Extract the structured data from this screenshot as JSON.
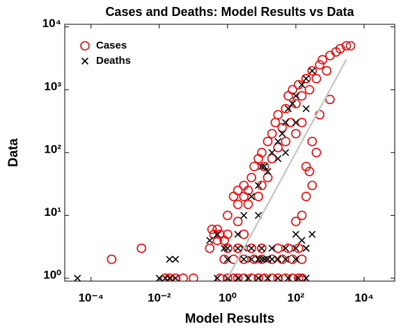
{
  "chart_data": {
    "type": "scatter",
    "title": "Cases and Deaths: Model Results vs Data",
    "x_label": "Model Results",
    "y_label": "Data",
    "log_x": true,
    "log_y": true,
    "grid": false,
    "legend": "upper left",
    "xlim": [
      1.7e-05,
      79000
    ],
    "ylim": [
      0.9,
      11000
    ],
    "xticks": [
      {
        "value": 0.0001,
        "label": "10⁻⁴"
      },
      {
        "value": 0.01,
        "label": "10⁻²"
      },
      {
        "value": 1,
        "label": "10⁰"
      },
      {
        "value": 100,
        "label": "10²"
      },
      {
        "value": 10000,
        "label": "10⁴"
      }
    ],
    "yticks": [
      {
        "value": 1,
        "label": "10⁰"
      },
      {
        "value": 10,
        "label": "10¹"
      },
      {
        "value": 100,
        "label": "10²"
      },
      {
        "value": 1000,
        "label": "10³"
      },
      {
        "value": 10000,
        "label": "10⁴"
      }
    ],
    "reference_line": {
      "x": [
        1,
        3000
      ],
      "y": [
        1,
        3000
      ],
      "color": "#c8c8c8"
    },
    "series": [
      {
        "name": "Cases",
        "color": "#ff0000",
        "marker": "o",
        "x": [
          0.0004,
          0.003,
          0.015,
          0.02,
          0.03,
          0.05,
          0.1,
          0.3,
          0.35,
          0.5,
          0.6,
          0.8,
          0.5,
          0.4,
          0.6,
          1,
          1.5,
          2,
          3,
          5,
          8,
          12,
          20,
          30,
          50,
          80,
          120,
          150,
          0.8,
          1.5,
          3,
          6,
          10,
          20,
          40,
          80,
          150,
          1,
          2,
          5,
          10,
          30,
          60,
          120,
          1,
          1.5,
          2,
          2,
          3,
          3,
          4,
          5,
          6,
          8,
          8,
          10,
          10,
          12,
          15,
          15,
          20,
          20,
          25,
          30,
          30,
          40,
          50,
          50,
          60,
          70,
          80,
          100,
          100,
          120,
          150,
          150,
          200,
          200,
          250,
          300,
          300,
          400,
          500,
          500,
          600,
          800,
          1000,
          1000,
          1500,
          2000,
          3000,
          4000,
          200,
          300,
          150,
          100,
          400,
          250,
          3,
          2,
          1,
          4
        ],
        "values": [
          2,
          3,
          1,
          1,
          1,
          1,
          1,
          3,
          6,
          6,
          5,
          4,
          4,
          5,
          1,
          1,
          1,
          1,
          1,
          1,
          1,
          1,
          1,
          1,
          1,
          1,
          1,
          1,
          2,
          2,
          2,
          2,
          2,
          2,
          2,
          2,
          2,
          3,
          3,
          3,
          3,
          3,
          3,
          3,
          10,
          20,
          25,
          8,
          30,
          5,
          15,
          40,
          60,
          80,
          20,
          100,
          30,
          60,
          150,
          40,
          200,
          80,
          300,
          120,
          400,
          250,
          500,
          150,
          800,
          300,
          1000,
          600,
          200,
          1200,
          800,
          300,
          1500,
          60,
          1000,
          2000,
          150,
          1500,
          2500,
          400,
          3000,
          2000,
          3500,
          700,
          4000,
          4500,
          5000,
          5000,
          20,
          30,
          10,
          8,
          100,
          50,
          20,
          15,
          5,
          25
        ]
      },
      {
        "name": "Deaths",
        "color": "#000000",
        "marker": "x",
        "x": [
          4e-05,
          0.01,
          0.015,
          0.02,
          0.03,
          0.02,
          0.03,
          0.3,
          0.5,
          0.8,
          1,
          3,
          5,
          8,
          10,
          12,
          15,
          20,
          30,
          50,
          100,
          2,
          5,
          10,
          20,
          50,
          100,
          200,
          0.5,
          1,
          2,
          4,
          8,
          15,
          30,
          60,
          120,
          200,
          1,
          2,
          3,
          5,
          8,
          10,
          12,
          15,
          20,
          30,
          40,
          50,
          60,
          80,
          100,
          150,
          200,
          300,
          100,
          200,
          50,
          30,
          8,
          3,
          150,
          200,
          100,
          300
        ],
        "values": [
          1,
          1,
          1,
          1,
          1,
          2,
          2,
          4,
          5,
          3,
          2,
          2,
          2,
          2,
          2,
          2,
          2,
          2,
          2,
          2,
          2,
          3,
          3,
          3,
          3,
          3,
          3,
          3,
          1,
          1,
          1,
          1,
          1,
          1,
          1,
          1,
          1,
          1,
          3,
          5,
          3,
          20,
          30,
          60,
          60,
          50,
          100,
          150,
          200,
          300,
          500,
          600,
          800,
          1200,
          1500,
          2000,
          300,
          500,
          100,
          80,
          10,
          10,
          4,
          3,
          5,
          5
        ]
      }
    ]
  }
}
